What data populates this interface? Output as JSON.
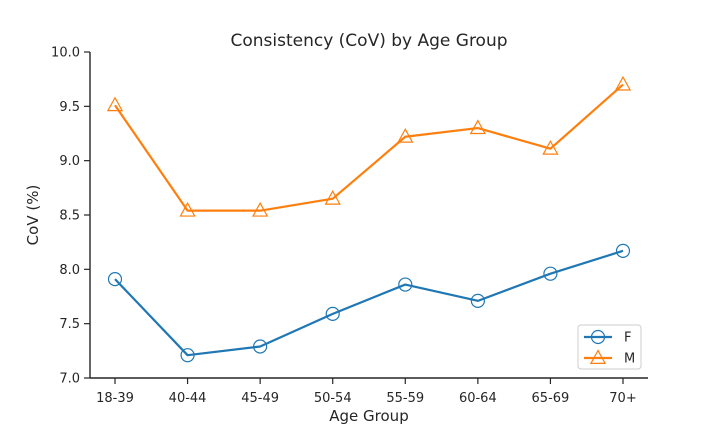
{
  "chart_data": {
    "type": "line",
    "title": "Consistency (CoV) by Age Group",
    "xlabel": "Age Group",
    "ylabel": "CoV (%)",
    "categories": [
      "18-39",
      "40-44",
      "45-49",
      "50-54",
      "55-59",
      "60-64",
      "65-69",
      "70+"
    ],
    "ylim": [
      7.0,
      10.0
    ],
    "yticks": [
      "7.0",
      "7.5",
      "8.0",
      "8.5",
      "9.0",
      "9.5",
      "10.0"
    ],
    "grid": false,
    "legend_position": "lower-right",
    "series": [
      {
        "name": "F",
        "marker": "circle",
        "color": "#1f77b4",
        "values": [
          7.91,
          7.21,
          7.29,
          7.59,
          7.86,
          7.71,
          7.96,
          8.17
        ]
      },
      {
        "name": "M",
        "marker": "triangle",
        "color": "#ff7f0e",
        "values": [
          9.51,
          8.54,
          8.54,
          8.65,
          9.22,
          9.3,
          9.11,
          9.7
        ]
      }
    ]
  }
}
